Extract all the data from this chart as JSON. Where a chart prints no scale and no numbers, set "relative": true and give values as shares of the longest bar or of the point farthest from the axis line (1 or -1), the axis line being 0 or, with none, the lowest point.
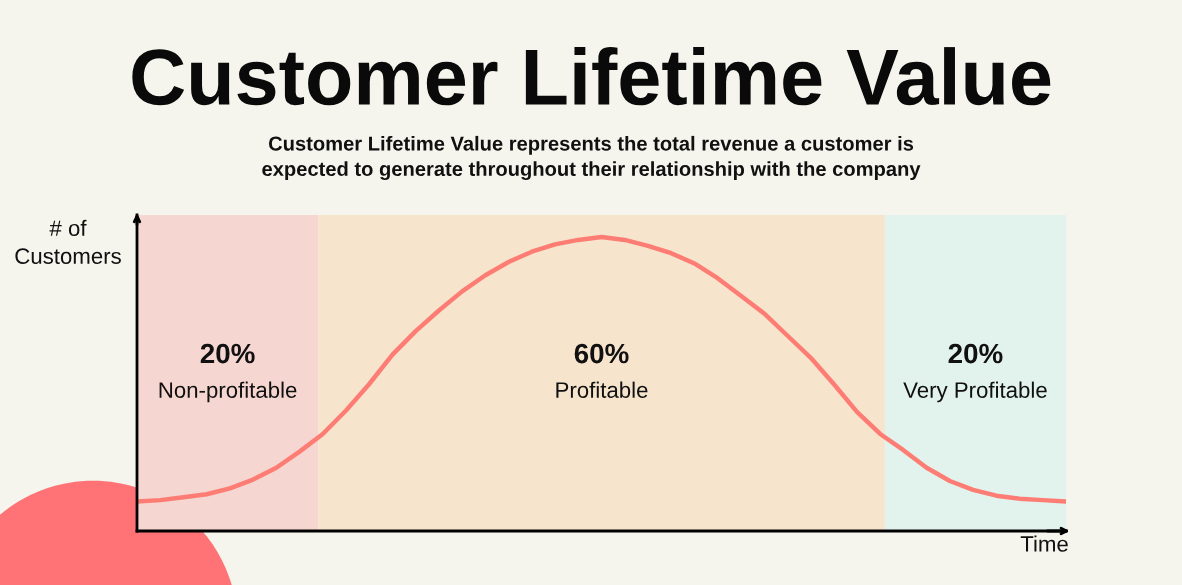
{
  "chart_data": {
    "type": "line",
    "title": "Customer Lifetime Value",
    "subtitle": "Customer Lifetime Value represents the total revenue a customer is\nexpected to generate throughout their relationship with the company",
    "xlabel": "Time",
    "ylabel": "# of\nCustomers",
    "relative": true,
    "categories": [
      null,
      null,
      null,
      null,
      null,
      null,
      null,
      null,
      null,
      null,
      null,
      null,
      null,
      null,
      null,
      null,
      null,
      null,
      null,
      null,
      null,
      null,
      null,
      null,
      null,
      null,
      null,
      null,
      null,
      null,
      null,
      null,
      null,
      null,
      null,
      null,
      null,
      null,
      null,
      null,
      null
    ],
    "series": [
      {
        "color": "#fd7d75",
        "values": [
          0.1,
          0.105,
          0.115,
          0.125,
          0.145,
          0.175,
          0.215,
          0.27,
          0.33,
          0.41,
          0.5,
          0.6,
          0.68,
          0.75,
          0.815,
          0.87,
          0.915,
          0.95,
          0.975,
          0.99,
          1,
          0.99,
          0.97,
          0.945,
          0.91,
          0.86,
          0.8,
          0.74,
          0.665,
          0.59,
          0.5,
          0.405,
          0.33,
          0.275,
          0.215,
          0.17,
          0.14,
          0.12,
          0.11,
          0.105,
          0.1
        ]
      }
    ],
    "annotations": [
      "20%\nNon-profitable",
      "60%\nProfitable",
      "20%\nVery Profitable"
    ]
  }
}
